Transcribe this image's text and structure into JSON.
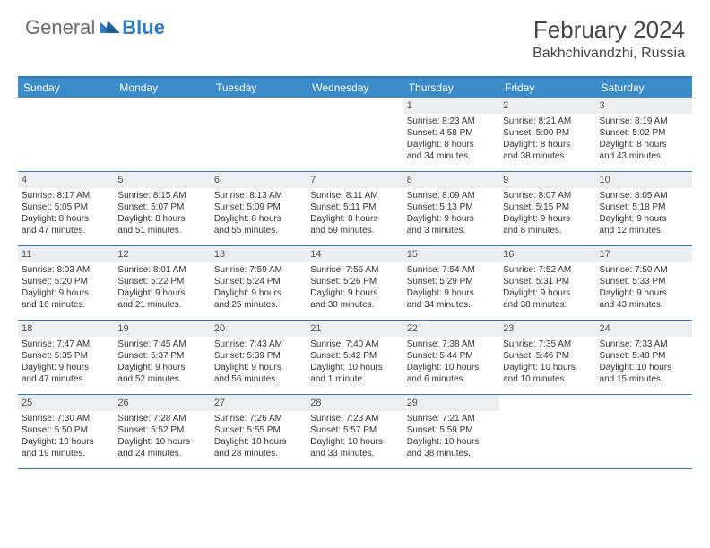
{
  "logo": {
    "text1": "General",
    "text2": "Blue"
  },
  "title": "February 2024",
  "location": "Bakhchivandzhi, Russia",
  "colors": {
    "header_bar": "#3b8bc9",
    "accent_line": "#2f7bbf",
    "daynum_bg": "#eceff1",
    "text": "#333333",
    "logo_gray": "#6b6b6b",
    "logo_blue": "#2f7bbf",
    "background": "#ffffff"
  },
  "weekdays": [
    "Sunday",
    "Monday",
    "Tuesday",
    "Wednesday",
    "Thursday",
    "Friday",
    "Saturday"
  ],
  "weeks": [
    [
      {
        "empty": true
      },
      {
        "empty": true
      },
      {
        "empty": true
      },
      {
        "empty": true
      },
      {
        "num": "1",
        "sunrise": "Sunrise: 8:23 AM",
        "sunset": "Sunset: 4:58 PM",
        "daylight1": "Daylight: 8 hours",
        "daylight2": "and 34 minutes."
      },
      {
        "num": "2",
        "sunrise": "Sunrise: 8:21 AM",
        "sunset": "Sunset: 5:00 PM",
        "daylight1": "Daylight: 8 hours",
        "daylight2": "and 38 minutes."
      },
      {
        "num": "3",
        "sunrise": "Sunrise: 8:19 AM",
        "sunset": "Sunset: 5:02 PM",
        "daylight1": "Daylight: 8 hours",
        "daylight2": "and 43 minutes."
      }
    ],
    [
      {
        "num": "4",
        "sunrise": "Sunrise: 8:17 AM",
        "sunset": "Sunset: 5:05 PM",
        "daylight1": "Daylight: 8 hours",
        "daylight2": "and 47 minutes."
      },
      {
        "num": "5",
        "sunrise": "Sunrise: 8:15 AM",
        "sunset": "Sunset: 5:07 PM",
        "daylight1": "Daylight: 8 hours",
        "daylight2": "and 51 minutes."
      },
      {
        "num": "6",
        "sunrise": "Sunrise: 8:13 AM",
        "sunset": "Sunset: 5:09 PM",
        "daylight1": "Daylight: 8 hours",
        "daylight2": "and 55 minutes."
      },
      {
        "num": "7",
        "sunrise": "Sunrise: 8:11 AM",
        "sunset": "Sunset: 5:11 PM",
        "daylight1": "Daylight: 8 hours",
        "daylight2": "and 59 minutes."
      },
      {
        "num": "8",
        "sunrise": "Sunrise: 8:09 AM",
        "sunset": "Sunset: 5:13 PM",
        "daylight1": "Daylight: 9 hours",
        "daylight2": "and 3 minutes."
      },
      {
        "num": "9",
        "sunrise": "Sunrise: 8:07 AM",
        "sunset": "Sunset: 5:15 PM",
        "daylight1": "Daylight: 9 hours",
        "daylight2": "and 8 minutes."
      },
      {
        "num": "10",
        "sunrise": "Sunrise: 8:05 AM",
        "sunset": "Sunset: 5:18 PM",
        "daylight1": "Daylight: 9 hours",
        "daylight2": "and 12 minutes."
      }
    ],
    [
      {
        "num": "11",
        "sunrise": "Sunrise: 8:03 AM",
        "sunset": "Sunset: 5:20 PM",
        "daylight1": "Daylight: 9 hours",
        "daylight2": "and 16 minutes."
      },
      {
        "num": "12",
        "sunrise": "Sunrise: 8:01 AM",
        "sunset": "Sunset: 5:22 PM",
        "daylight1": "Daylight: 9 hours",
        "daylight2": "and 21 minutes."
      },
      {
        "num": "13",
        "sunrise": "Sunrise: 7:59 AM",
        "sunset": "Sunset: 5:24 PM",
        "daylight1": "Daylight: 9 hours",
        "daylight2": "and 25 minutes."
      },
      {
        "num": "14",
        "sunrise": "Sunrise: 7:56 AM",
        "sunset": "Sunset: 5:26 PM",
        "daylight1": "Daylight: 9 hours",
        "daylight2": "and 30 minutes."
      },
      {
        "num": "15",
        "sunrise": "Sunrise: 7:54 AM",
        "sunset": "Sunset: 5:29 PM",
        "daylight1": "Daylight: 9 hours",
        "daylight2": "and 34 minutes."
      },
      {
        "num": "16",
        "sunrise": "Sunrise: 7:52 AM",
        "sunset": "Sunset: 5:31 PM",
        "daylight1": "Daylight: 9 hours",
        "daylight2": "and 38 minutes."
      },
      {
        "num": "17",
        "sunrise": "Sunrise: 7:50 AM",
        "sunset": "Sunset: 5:33 PM",
        "daylight1": "Daylight: 9 hours",
        "daylight2": "and 43 minutes."
      }
    ],
    [
      {
        "num": "18",
        "sunrise": "Sunrise: 7:47 AM",
        "sunset": "Sunset: 5:35 PM",
        "daylight1": "Daylight: 9 hours",
        "daylight2": "and 47 minutes."
      },
      {
        "num": "19",
        "sunrise": "Sunrise: 7:45 AM",
        "sunset": "Sunset: 5:37 PM",
        "daylight1": "Daylight: 9 hours",
        "daylight2": "and 52 minutes."
      },
      {
        "num": "20",
        "sunrise": "Sunrise: 7:43 AM",
        "sunset": "Sunset: 5:39 PM",
        "daylight1": "Daylight: 9 hours",
        "daylight2": "and 56 minutes."
      },
      {
        "num": "21",
        "sunrise": "Sunrise: 7:40 AM",
        "sunset": "Sunset: 5:42 PM",
        "daylight1": "Daylight: 10 hours",
        "daylight2": "and 1 minute."
      },
      {
        "num": "22",
        "sunrise": "Sunrise: 7:38 AM",
        "sunset": "Sunset: 5:44 PM",
        "daylight1": "Daylight: 10 hours",
        "daylight2": "and 6 minutes."
      },
      {
        "num": "23",
        "sunrise": "Sunrise: 7:35 AM",
        "sunset": "Sunset: 5:46 PM",
        "daylight1": "Daylight: 10 hours",
        "daylight2": "and 10 minutes."
      },
      {
        "num": "24",
        "sunrise": "Sunrise: 7:33 AM",
        "sunset": "Sunset: 5:48 PM",
        "daylight1": "Daylight: 10 hours",
        "daylight2": "and 15 minutes."
      }
    ],
    [
      {
        "num": "25",
        "sunrise": "Sunrise: 7:30 AM",
        "sunset": "Sunset: 5:50 PM",
        "daylight1": "Daylight: 10 hours",
        "daylight2": "and 19 minutes."
      },
      {
        "num": "26",
        "sunrise": "Sunrise: 7:28 AM",
        "sunset": "Sunset: 5:52 PM",
        "daylight1": "Daylight: 10 hours",
        "daylight2": "and 24 minutes."
      },
      {
        "num": "27",
        "sunrise": "Sunrise: 7:26 AM",
        "sunset": "Sunset: 5:55 PM",
        "daylight1": "Daylight: 10 hours",
        "daylight2": "and 28 minutes."
      },
      {
        "num": "28",
        "sunrise": "Sunrise: 7:23 AM",
        "sunset": "Sunset: 5:57 PM",
        "daylight1": "Daylight: 10 hours",
        "daylight2": "and 33 minutes."
      },
      {
        "num": "29",
        "sunrise": "Sunrise: 7:21 AM",
        "sunset": "Sunset: 5:59 PM",
        "daylight1": "Daylight: 10 hours",
        "daylight2": "and 38 minutes."
      },
      {
        "empty": true
      },
      {
        "empty": true
      }
    ]
  ]
}
